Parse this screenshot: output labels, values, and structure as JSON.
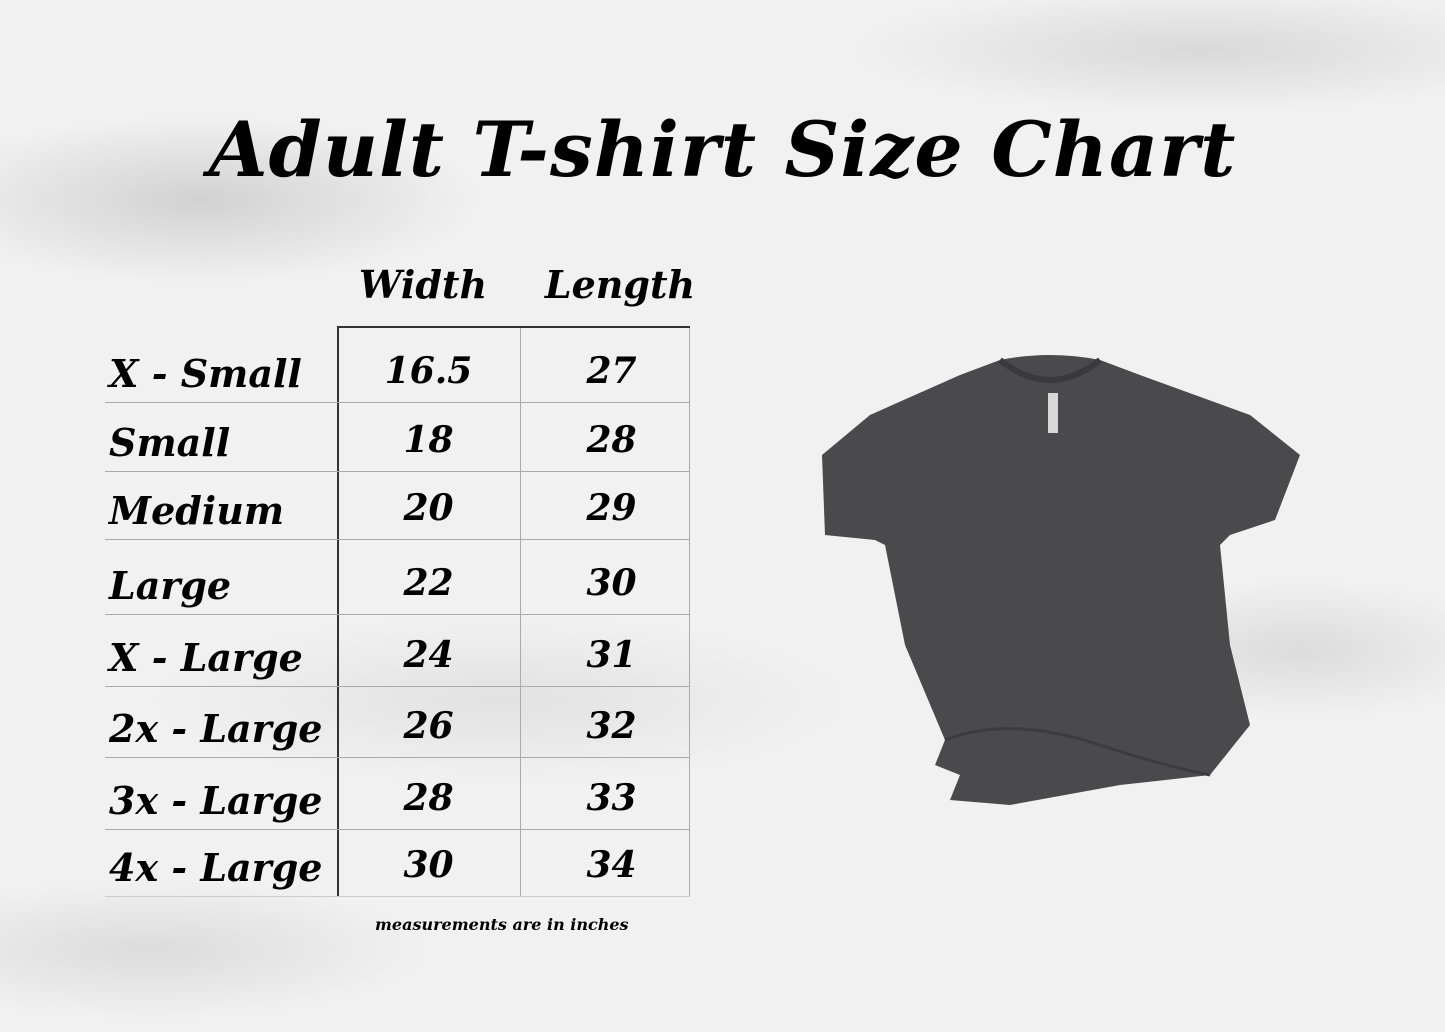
{
  "title": "Adult T-shirt Size Chart",
  "columns": {
    "width": "Width",
    "length": "Length"
  },
  "rows": [
    {
      "size": "X - Small",
      "width": "16.5",
      "length": "27"
    },
    {
      "size": "Small",
      "width": "18",
      "length": "28"
    },
    {
      "size": "Medium",
      "width": "20",
      "length": "29"
    },
    {
      "size": "Large",
      "width": "22",
      "length": "30"
    },
    {
      "size": "X - Large",
      "width": "24",
      "length": "31"
    },
    {
      "size": "2x - Large",
      "width": "26",
      "length": "32"
    },
    {
      "size": "3x - Large",
      "width": "28",
      "length": "33"
    },
    {
      "size": "4x - Large",
      "width": "30",
      "length": "34"
    }
  ],
  "note": "measurements are in inches",
  "colors": {
    "shirt": "#4a4a4c",
    "background": "#f1f1f1"
  }
}
